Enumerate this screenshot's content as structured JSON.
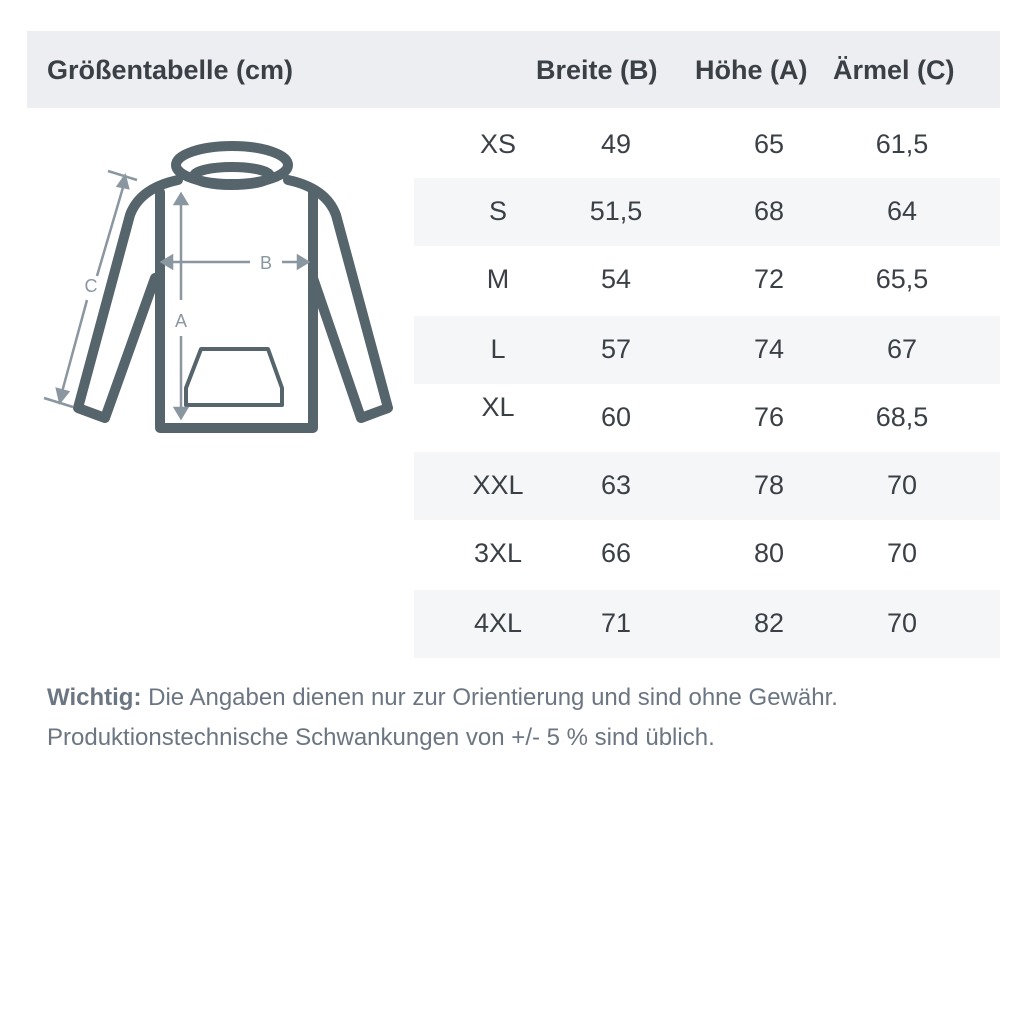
{
  "header": {
    "title": "Größentabelle (cm)",
    "columns": [
      "Breite (B)",
      "Höhe (A)",
      "Ärmel (C)"
    ]
  },
  "diagram": {
    "labels": {
      "a": "A",
      "b": "B",
      "c": "C"
    },
    "colors": {
      "outline": "#56646c",
      "measure": "#8a96a0"
    }
  },
  "rows": [
    {
      "size": "XS",
      "breite": "49",
      "hoehe": "65",
      "aermel": "61,5"
    },
    {
      "size": "S",
      "breite": "51,5",
      "hoehe": "68",
      "aermel": "64"
    },
    {
      "size": "M",
      "breite": "54",
      "hoehe": "72",
      "aermel": "65,5"
    },
    {
      "size": "L",
      "breite": "57",
      "hoehe": "74",
      "aermel": "67"
    },
    {
      "size": "XL",
      "breite": "60",
      "hoehe": "76",
      "aermel": "68,5"
    },
    {
      "size": "XXL",
      "breite": "63",
      "hoehe": "78",
      "aermel": "70"
    },
    {
      "size": "3XL",
      "breite": "66",
      "hoehe": "80",
      "aermel": "70"
    },
    {
      "size": "4XL",
      "breite": "71",
      "hoehe": "82",
      "aermel": "70"
    }
  ],
  "note": {
    "label": "Wichtig:",
    "line1": " Die Angaben dienen nur zur Orientierung und sind ohne Gewähr.",
    "line2": "Produktionstechnische Schwankungen von +/- 5 % sind üblich."
  }
}
